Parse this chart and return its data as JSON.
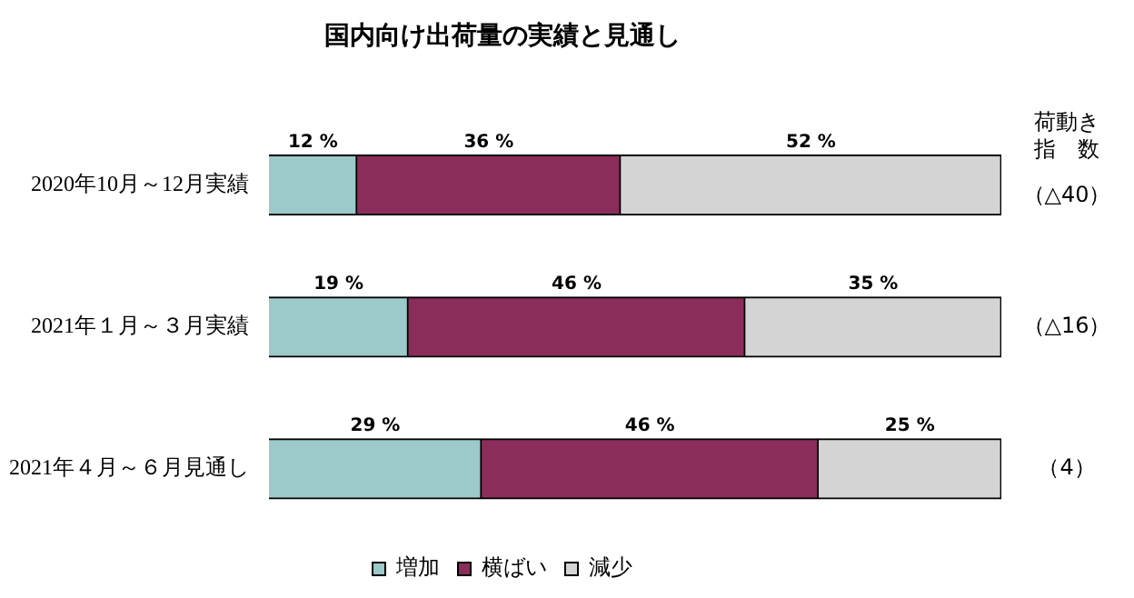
{
  "chart_data": {
    "type": "bar",
    "orientation": "horizontal",
    "stacked": true,
    "title": "国内向け出荷量の実績と見通し",
    "categories": [
      "2020年10月～12月実績",
      "2021年１月～３月実績",
      "2021年４月～６月見通し"
    ],
    "series": [
      {
        "name": "増加",
        "color": "#9cc9c9",
        "values": [
          12,
          19,
          29
        ],
        "value_labels": [
          "12 %",
          "19 %",
          "29 %"
        ]
      },
      {
        "name": "横ばい",
        "color": "#8b2d5a",
        "values": [
          36,
          46,
          46
        ],
        "value_labels": [
          "36 %",
          "46 %",
          "46 %"
        ]
      },
      {
        "name": "減少",
        "color": "#d4d4d4",
        "values": [
          52,
          35,
          25
        ],
        "value_labels": [
          "52 %",
          "35 %",
          "25 %"
        ]
      }
    ],
    "annotations": [
      "荷動き",
      "指　数",
      "（△40）",
      "（△16）",
      "（4）"
    ],
    "legend": "bottom",
    "tick_labels": "y"
  }
}
